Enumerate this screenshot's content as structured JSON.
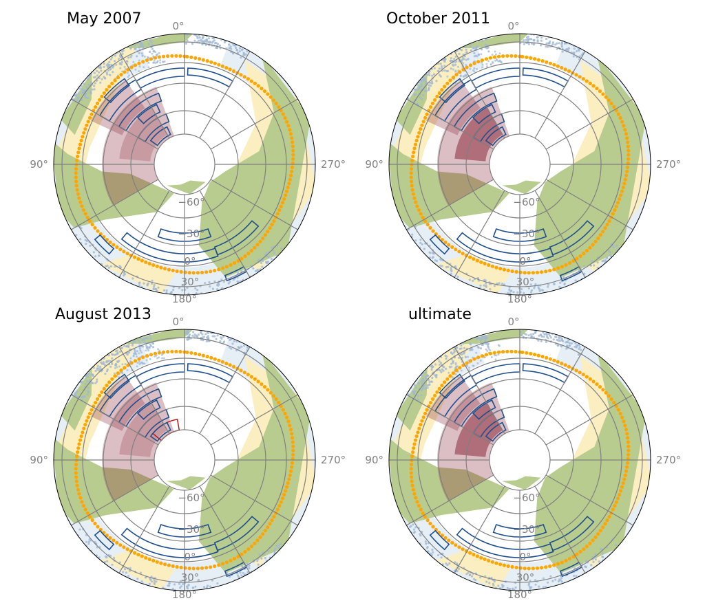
{
  "chart_data": [
    {
      "type": "polar-sky-map",
      "title": "May 2007",
      "lon_labels": [
        "0°",
        "90°",
        "180°",
        "270°"
      ],
      "lat_labels": [
        "−60°",
        "−30°",
        "0°",
        "30°"
      ],
      "regions": {
        "survey_coverage": "dark-blue outlined fields",
        "shaded_area": "light-maroon patch, lon 60°–140°",
        "dark_area": "none"
      }
    },
    {
      "type": "polar-sky-map",
      "title": "October 2011",
      "lon_labels": [
        "0°",
        "90°",
        "180°",
        "270°"
      ],
      "lat_labels": [
        "−60°",
        "−30°",
        "0°",
        "30°"
      ],
      "regions": {
        "survey_coverage": "dark-blue outlined fields",
        "shaded_area": "maroon patch, lon 60°–140°",
        "dark_area": "darker core"
      }
    },
    {
      "type": "polar-sky-map",
      "title": "August 2013",
      "lon_labels": [
        "0°",
        "90°",
        "180°",
        "270°"
      ],
      "lat_labels": [
        "−60°",
        "−30°",
        "0°",
        "30°"
      ],
      "regions": {
        "survey_coverage": "dark-blue outlined fields",
        "shaded_area": "light-maroon patch, lon 60°–140°",
        "dark_area": "small red arc"
      }
    },
    {
      "type": "polar-sky-map",
      "title": "ultimate",
      "lon_labels": [
        "0°",
        "90°",
        "180°",
        "270°"
      ],
      "lat_labels": [
        "−60°",
        "−30°",
        "0°",
        "30°"
      ],
      "regions": {
        "survey_coverage": "dark-blue outlined fields",
        "shaded_area": "maroon patch, lon 60°–140°",
        "dark_area": "darker core"
      }
    }
  ],
  "colors": {
    "green": "#b9cc8f",
    "cream": "#fbeec0",
    "paleblue": "#cddded",
    "blue_dots": "#9fb8d4",
    "orange": "#ffa500",
    "navy": "#1f4e8c",
    "maroon": "#8b2c3c",
    "grid": "#7f7f7f"
  }
}
